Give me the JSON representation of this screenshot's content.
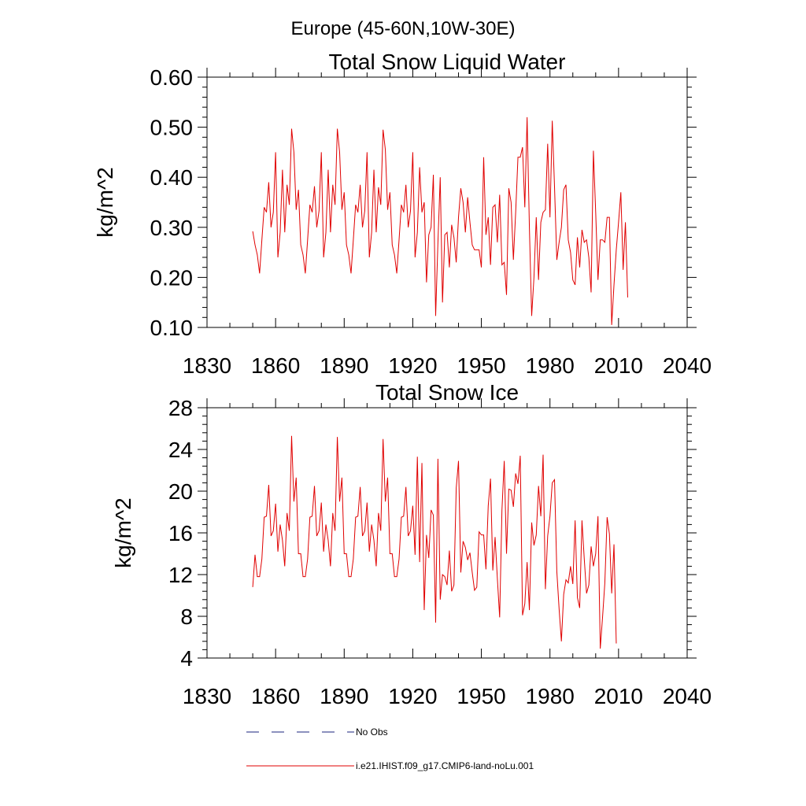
{
  "figure_title": "Europe (45-60N,10W-30E)",
  "legend": {
    "entries": [
      {
        "label": "No Obs",
        "color": "#1a237e",
        "style": "dashed"
      },
      {
        "label": "i.e21.IHIST.f09_g17.CMIP6-land-noLu.001",
        "color": "#e00000",
        "style": "solid"
      }
    ]
  },
  "chart_data": [
    {
      "type": "line",
      "title": "Total Snow Liquid Water",
      "xlabel": "",
      "ylabel": "kg/m^2",
      "xlim": [
        1830,
        2040
      ],
      "ylim": [
        0.1,
        0.6
      ],
      "xticks": [
        "1830",
        "1860",
        "1890",
        "1920",
        "1950",
        "1980",
        "2010",
        "2040"
      ],
      "yticks": [
        "0.10",
        "0.20",
        "0.30",
        "0.40",
        "0.50",
        "0.60"
      ],
      "grid": false,
      "series_color": "#e00000",
      "x_start": 1850,
      "x_step": 1,
      "values": [
        0.292,
        0.265,
        0.245,
        0.208,
        0.275,
        0.34,
        0.33,
        0.39,
        0.3,
        0.33,
        0.45,
        0.24,
        0.29,
        0.415,
        0.29,
        0.385,
        0.345,
        0.497,
        0.45,
        0.335,
        0.375,
        0.265,
        0.245,
        0.208,
        0.275,
        0.345,
        0.33,
        0.382,
        0.3,
        0.333,
        0.45,
        0.24,
        0.29,
        0.415,
        0.29,
        0.385,
        0.345,
        0.497,
        0.45,
        0.335,
        0.37,
        0.265,
        0.245,
        0.208,
        0.275,
        0.345,
        0.33,
        0.385,
        0.3,
        0.333,
        0.45,
        0.24,
        0.29,
        0.415,
        0.29,
        0.38,
        0.345,
        0.495,
        0.455,
        0.335,
        0.37,
        0.265,
        0.245,
        0.208,
        0.275,
        0.345,
        0.33,
        0.385,
        0.3,
        0.333,
        0.45,
        0.24,
        0.29,
        0.42,
        0.33,
        0.35,
        0.19,
        0.285,
        0.3,
        0.405,
        0.123,
        0.27,
        0.4,
        0.15,
        0.285,
        0.29,
        0.22,
        0.305,
        0.28,
        0.23,
        0.32,
        0.378,
        0.35,
        0.29,
        0.36,
        0.31,
        0.265,
        0.255,
        0.255,
        0.255,
        0.22,
        0.44,
        0.285,
        0.32,
        0.225,
        0.34,
        0.345,
        0.27,
        0.365,
        0.225,
        0.23,
        0.165,
        0.378,
        0.35,
        0.235,
        0.33,
        0.44,
        0.44,
        0.46,
        0.34,
        0.52,
        0.3,
        0.123,
        0.2,
        0.32,
        0.195,
        0.31,
        0.33,
        0.335,
        0.467,
        0.32,
        0.513,
        0.38,
        0.235,
        0.27,
        0.3,
        0.375,
        0.385,
        0.275,
        0.25,
        0.195,
        0.185,
        0.28,
        0.22,
        0.295,
        0.27,
        0.275,
        0.24,
        0.17,
        0.453,
        0.33,
        0.195,
        0.275,
        0.275,
        0.27,
        0.32,
        0.32,
        0.105,
        0.185,
        0.255,
        0.31,
        0.37,
        0.215,
        0.31,
        0.16
      ]
    },
    {
      "type": "line",
      "title": "Total Snow Ice",
      "xlabel": "",
      "ylabel": "kg/m^2",
      "xlim": [
        1830,
        2040
      ],
      "ylim": [
        4,
        28
      ],
      "xticks": [
        "1830",
        "1860",
        "1890",
        "1920",
        "1950",
        "1980",
        "2010",
        "2040"
      ],
      "yticks": [
        "4",
        "8",
        "12",
        "16",
        "20",
        "24",
        "28"
      ],
      "grid": false,
      "series_color": "#e00000",
      "x_start": 1850,
      "x_step": 1,
      "values": [
        10.8,
        13.9,
        11.8,
        11.8,
        13.5,
        17.5,
        17.6,
        20.6,
        15.7,
        16.2,
        18.8,
        14.2,
        16.8,
        15.3,
        12.8,
        17.9,
        16.2,
        25.3,
        19.0,
        21.3,
        14.0,
        14.0,
        11.8,
        11.8,
        13.5,
        17.5,
        17.6,
        20.5,
        15.7,
        16.2,
        18.9,
        14.2,
        16.8,
        15.3,
        12.8,
        17.9,
        16.2,
        25.2,
        19.0,
        21.3,
        14.0,
        14.0,
        11.8,
        11.8,
        13.5,
        17.5,
        17.6,
        20.4,
        15.7,
        16.2,
        18.9,
        14.2,
        16.8,
        15.3,
        12.8,
        17.9,
        16.2,
        25.0,
        19.0,
        21.3,
        14.0,
        14.0,
        11.8,
        11.8,
        13.5,
        17.5,
        17.6,
        20.4,
        15.7,
        16.2,
        18.6,
        13.9,
        23.3,
        13.2,
        22.7,
        8.6,
        15.8,
        13.6,
        18.2,
        17.7,
        7.4,
        23.1,
        9.6,
        12.0,
        11.8,
        11.0,
        14.3,
        10.4,
        11.0,
        20.3,
        22.9,
        12.2,
        15.2,
        14.6,
        13.4,
        14.1,
        12.2,
        10.5,
        10.8,
        16.1,
        15.8,
        15.8,
        12.5,
        18.6,
        21.2,
        12.4,
        15.6,
        11.6,
        7.9,
        18.2,
        22.9,
        14.0,
        20.2,
        20.1,
        18.5,
        21.7,
        20.7,
        23.4,
        8.1,
        9.2,
        13.2,
        8.6,
        17.0,
        14.8,
        15.8,
        20.5,
        17.6,
        23.5,
        10.6,
        15.7,
        17.6,
        20.8,
        21.1,
        12.3,
        8.7,
        5.6,
        10.1,
        11.5,
        11.2,
        12.8,
        11.1,
        17.2,
        9.8,
        8.8,
        17.2,
        13.5,
        10.2,
        11.0,
        14.7,
        12.8,
        14.0,
        17.6,
        4.9,
        7.9,
        11.2,
        17.5,
        15.9,
        10.2,
        14.9,
        5.4
      ]
    }
  ]
}
